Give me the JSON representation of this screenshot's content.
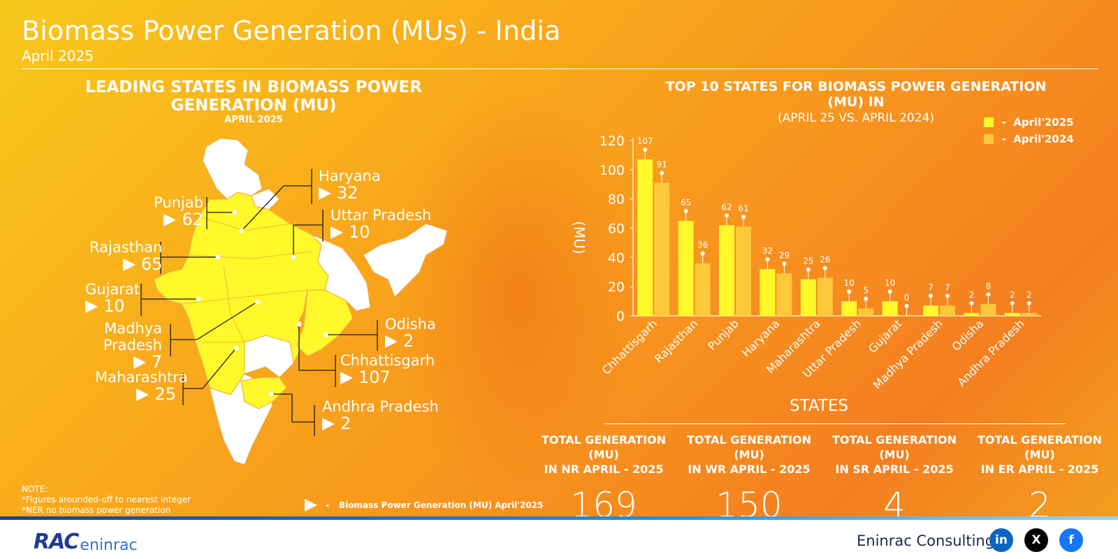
{
  "header": {
    "title": "Biomass Power Generation (MUs) - India",
    "subtitle": "April 2025"
  },
  "map_panel": {
    "heading": "LEADING STATES IN BIOMASS POWER GENERATION (MU)",
    "subheading": "APRIL 2025",
    "callouts": [
      {
        "state": "Haryana",
        "value": "32"
      },
      {
        "state": "Punjab",
        "value": "62"
      },
      {
        "state": "Uttar Pradesh",
        "value": "10"
      },
      {
        "state": "Rajasthan",
        "value": "65"
      },
      {
        "state": "Gujarat",
        "value": "10"
      },
      {
        "state": "Odisha",
        "value": "2"
      },
      {
        "state": "Madhya Pradesh",
        "value": "7"
      },
      {
        "state": "Chhattisgarh",
        "value": "107"
      },
      {
        "state": "Maharashtra",
        "value": "25"
      },
      {
        "state": "Andhra Pradesh",
        "value": "2"
      }
    ],
    "notes": [
      "NOTE:",
      "*Figures arounded-off to nearest integer",
      "*NER no biomass power generation"
    ],
    "key_separator": "-",
    "key_label": "Biomass Power Generation (MU) April'2025"
  },
  "chart_panel": {
    "heading": "TOP 10 STATES FOR BIOMASS POWER GENERATION (MU) IN",
    "subheading": "(APRIL 25 VS. APRIL 2024)",
    "legend_separator": "-"
  },
  "chart_data": {
    "type": "bar",
    "title": "TOP 10 STATES FOR BIOMASS POWER GENERATION (MU) IN (APRIL 25 VS. APRIL 2024)",
    "xlabel": "STATES",
    "ylabel": "(MU)",
    "ylim": [
      0,
      120
    ],
    "yticks": [
      0,
      20,
      40,
      60,
      80,
      100,
      120
    ],
    "categories": [
      "Chhattisgarh",
      "Rajasthan",
      "Punjab",
      "Haryana",
      "Maharashtra",
      "Uttar Pradesh",
      "Gujarat",
      "Madhya Pradesh",
      "Odisha",
      "Andhra Pradesh"
    ],
    "series": [
      {
        "name": "April'2025",
        "color": "#fff82a",
        "values": [
          107,
          65,
          62,
          32,
          25,
          10,
          10,
          7,
          2,
          2
        ]
      },
      {
        "name": "April'2024",
        "color": "#fdc93a",
        "values": [
          91,
          36,
          61,
          29,
          26,
          5,
          0,
          7,
          8,
          2
        ]
      }
    ],
    "legend": "top-right",
    "grid": false
  },
  "totals": [
    {
      "label_line1": "TOTAL  GENERATION (MU)",
      "label_line2": "IN NR APRIL - 2025",
      "value": "169"
    },
    {
      "label_line1": "TOTAL  GENERATION (MU)",
      "label_line2": "IN WR APRIL - 2025",
      "value": "150"
    },
    {
      "label_line1": "TOTAL  GENERATION (MU)",
      "label_line2": "IN SR APRIL - 2025",
      "value": "4"
    },
    {
      "label_line1": "TOTAL  GENERATION (MU)",
      "label_line2": "IN ER APRIL - 2025",
      "value": "2"
    }
  ],
  "footer": {
    "logo_text_main": "RAC",
    "logo_text_sub": "eninrac",
    "company": "Eninrac Consulting",
    "social": [
      {
        "icon": "linkedin-icon",
        "glyph": "in",
        "color": "#0a66c2"
      },
      {
        "icon": "x-icon",
        "glyph": "X",
        "color": "#000000"
      },
      {
        "icon": "facebook-icon",
        "glyph": "f",
        "color": "#1877f2"
      }
    ]
  }
}
